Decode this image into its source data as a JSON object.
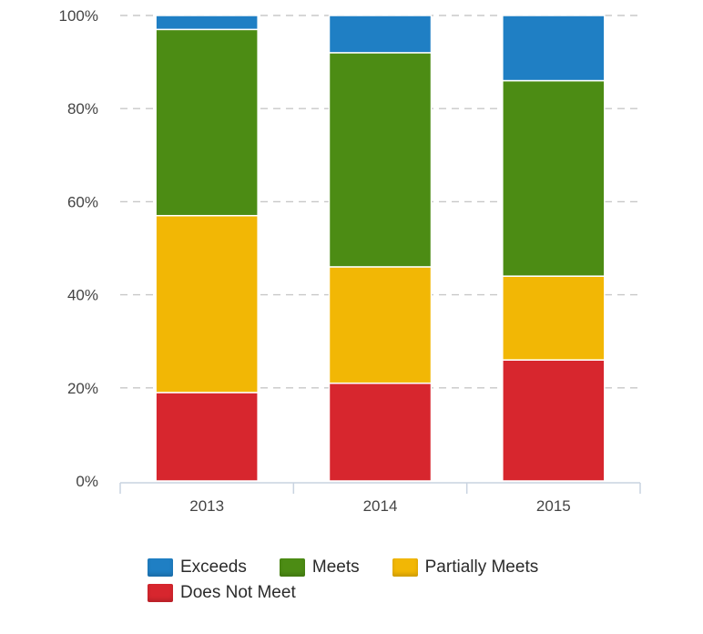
{
  "chart_data": {
    "type": "bar",
    "stacked": true,
    "categories": [
      "2013",
      "2014",
      "2015"
    ],
    "series": [
      {
        "name": "Does Not Meet",
        "values": [
          19,
          21,
          26
        ],
        "color": "#d7262e"
      },
      {
        "name": "Partially Meets",
        "values": [
          38,
          25,
          18
        ],
        "color": "#f2b705"
      },
      {
        "name": "Meets",
        "values": [
          40,
          46,
          42
        ],
        "color": "#4c8c14"
      },
      {
        "name": "Exceeds",
        "values": [
          3,
          8,
          14
        ],
        "color": "#1f7fc4"
      }
    ],
    "ylim": [
      0,
      100
    ],
    "yticks": [
      "0%",
      "20%",
      "40%",
      "60%",
      "80%",
      "100%"
    ],
    "grid": true,
    "legend": "bottom",
    "title": "",
    "xlabel": "",
    "ylabel": ""
  },
  "legend": [
    {
      "label": "Exceeds",
      "color": "#1f7fc4"
    },
    {
      "label": "Meets",
      "color": "#4c8c14"
    },
    {
      "label": "Partially Meets",
      "color": "#f2b705"
    },
    {
      "label": "Does Not Meet",
      "color": "#d7262e"
    }
  ]
}
